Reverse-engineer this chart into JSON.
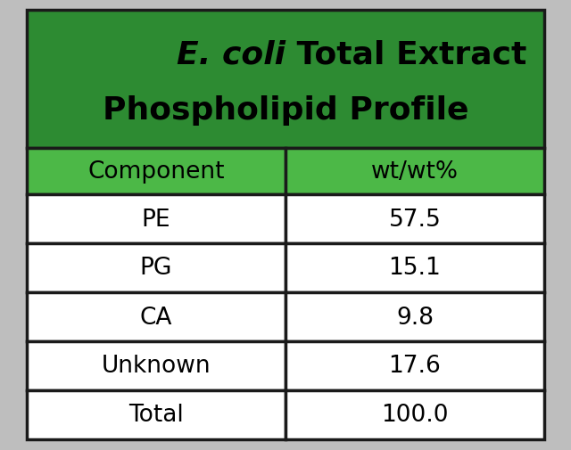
{
  "title_italic": "E. coli",
  "title_normal": " Total Extract",
  "title_line2": "Phospholipid Profile",
  "header_col1": "Component",
  "header_col2": "wt/wt%",
  "rows": [
    [
      "PE",
      "57.5"
    ],
    [
      "PG",
      "15.1"
    ],
    [
      "CA",
      "9.8"
    ],
    [
      "Unknown",
      "17.6"
    ],
    [
      "Total",
      "100.0"
    ]
  ],
  "header_bg_color": "#4CB847",
  "title_bg_color": "#2D8B32",
  "title_text_color": "#000000",
  "header_text_color": "#000000",
  "row_bg_color": "#FFFFFF",
  "row_text_color": "#000000",
  "border_color": "#1A1A1A",
  "outer_bg_color": "#BEBEBE",
  "title_fontsize": 26,
  "header_fontsize": 19,
  "row_fontsize": 19
}
